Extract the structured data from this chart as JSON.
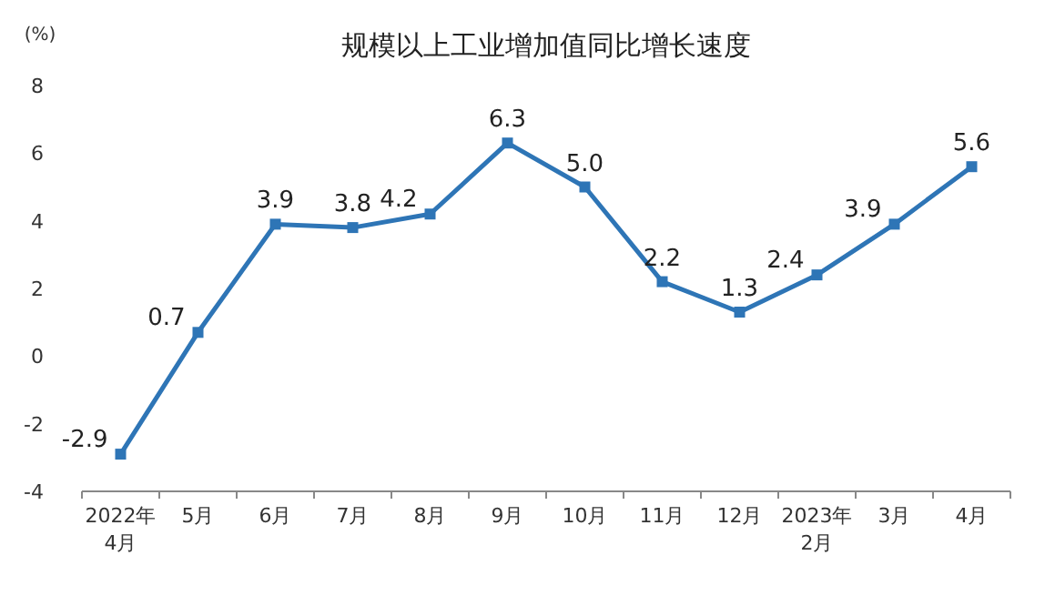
{
  "chart_data": {
    "type": "line",
    "title": "规模以上工业增加值同比增长速度",
    "ylabel": "(%)",
    "categories": [
      "2022年\n4月",
      "5月",
      "6月",
      "7月",
      "8月",
      "9月",
      "10月",
      "11月",
      "12月",
      "2023年\n2月",
      "3月",
      "4月"
    ],
    "values": [
      -2.9,
      0.7,
      3.9,
      3.8,
      4.2,
      6.3,
      5.0,
      2.2,
      1.3,
      2.4,
      3.9,
      5.6
    ],
    "value_labels": [
      "-2.9",
      "0.7",
      "3.9",
      "3.8",
      "4.2",
      "6.3",
      "5.0",
      "2.2",
      "1.3",
      "2.4",
      "3.9",
      "5.6"
    ],
    "color": "#2e75b6",
    "marker": "square",
    "line_style": "solid",
    "ylim": [
      -4,
      8
    ],
    "yticks": [
      -4,
      -2,
      0,
      2,
      4,
      6,
      8
    ]
  }
}
